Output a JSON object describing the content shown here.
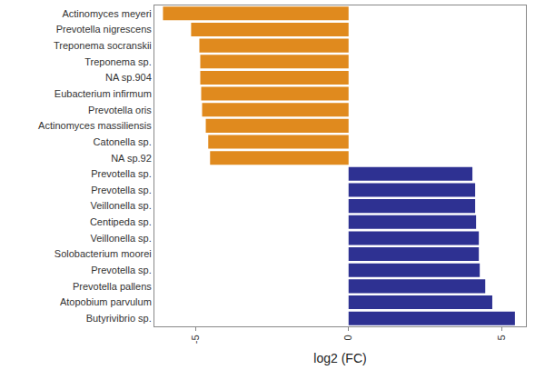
{
  "chart_data": {
    "type": "bar",
    "orientation": "horizontal",
    "x_label": "log2 (FC)",
    "categories": [
      "Actinomyces meyeri",
      "Prevotella nigrescens",
      "Treponema socranskii",
      "Treponema sp.",
      "NA sp.904",
      "Eubacterium infirmum",
      "Prevotella oris",
      "Actinomyces massiliensis",
      "Catonella sp.",
      "NA sp.92",
      "Prevotella sp.",
      "Prevotella sp.",
      "Veillonella sp.",
      "Centipeda sp.",
      "Veillonella sp.",
      "Solobacterium moorei",
      "Prevotella sp.",
      "Prevotella pallens",
      "Atopobium parvulum",
      "Butyrivibrio sp."
    ],
    "values": [
      -6.07,
      -5.15,
      -4.88,
      -4.85,
      -4.85,
      -4.82,
      -4.79,
      -4.67,
      -4.59,
      -4.53,
      4.05,
      4.14,
      4.14,
      4.17,
      4.26,
      4.26,
      4.29,
      4.47,
      4.7,
      5.44
    ],
    "colors": [
      "#e08a1e",
      "#e08a1e",
      "#e08a1e",
      "#e08a1e",
      "#e08a1e",
      "#e08a1e",
      "#e08a1e",
      "#e08a1e",
      "#e08a1e",
      "#e08a1e",
      "#2e3192",
      "#2e3192",
      "#2e3192",
      "#2e3192",
      "#2e3192",
      "#2e3192",
      "#2e3192",
      "#2e3192",
      "#2e3192",
      "#2e3192"
    ],
    "xlim": [
      -6.35,
      5.8
    ],
    "xticks": [
      -5,
      0,
      5
    ],
    "grid": false
  }
}
